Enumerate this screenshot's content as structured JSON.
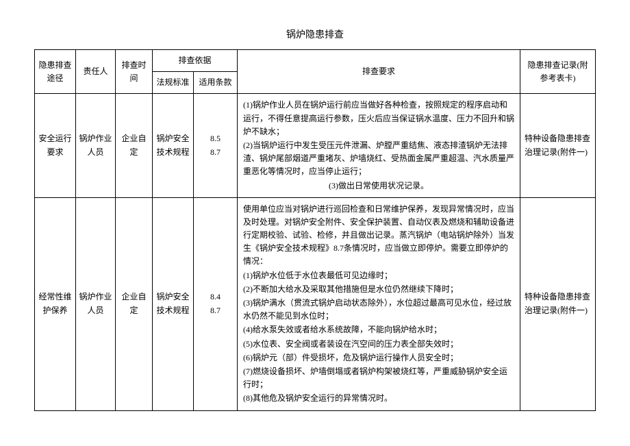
{
  "title": "锅炉隐患排查",
  "headers": {
    "path": "隐患排查途径",
    "person": "责任人",
    "time": "排查时间",
    "basis": "排查依据",
    "standard": "法规标准",
    "clause": "适用条款",
    "requirement": "排查要求",
    "record": "隐患排查记录(附参考表卡)"
  },
  "rows": [
    {
      "path": "安全运行要求",
      "person": "锅炉作业人员",
      "time": "企业自定",
      "standard": "锅炉安全技术规程",
      "clause": "8.5\n8.7",
      "requirement": [
        "(1)锅炉作业人员在锅炉运行前应当做好各种检查，按照规定的程序启动和运行，不得任意提高运行参数，压火后应当保证锅水温度、压力不回升和锅炉不缺水；",
        "(2)当锅炉运行中发生受压元件泄漏、炉膛严重结焦、液态排渣锅炉无法排渣、锅炉尾部烟道严重堵灰、炉墙烧红、受热面金属严重超温、汽水质量严重恶化等情况时，应当停止运行；",
        "(3)做出日常使用状况记录。"
      ],
      "req_center_last": true,
      "record": "特种设备隐患排查治理记录(附件一)"
    },
    {
      "path": "经常性维护保养",
      "person": "锅炉作业人员",
      "time": "企业自定",
      "standard": "锅炉安全技术规程",
      "clause": "8.4\n8.7",
      "requirement": [
        "使用单位应当对锅炉进行巡回检查和日常维护保养，发现异常情况时，应当及时处理。对锅炉安全附件、安全保护装置、自动仪表及燃烧和辅助设备进行定期校验、试验、检修，并且做出记录。蒸汽锅炉（电站锅炉除外）当发生《锅炉安全技术规程》8.7条情况时，应当做立即停炉。需要立即停炉的情况：",
        "(1)锅炉水位低于水位表最低可见边缘时；",
        "(2)不断加大给水及采取其他措施但是水位仍然继续下降时；",
        "(3)锅炉满水（贯流式锅炉启动状态除外），水位超过最高可见水位，经过放水仍然不能见到水位时；",
        "(4)给水泵失效或者给水系统故障，不能向锅炉给水时；",
        "(5)水位表、安全阀或者装设在汽空间的压力表全部失效时；",
        "(6)锅炉元（部）件受损坏，危及锅炉运行操作人员安全时；",
        "(7)燃烧设备损坏、炉墙倒塌或者锅炉构架被烧红等，严重威胁锅炉安全运行时；",
        "(8)其他危及锅炉安全运行的异常情况时。"
      ],
      "req_center_last": false,
      "record": "特种设备隐患排查治理记录(附件一)"
    }
  ]
}
